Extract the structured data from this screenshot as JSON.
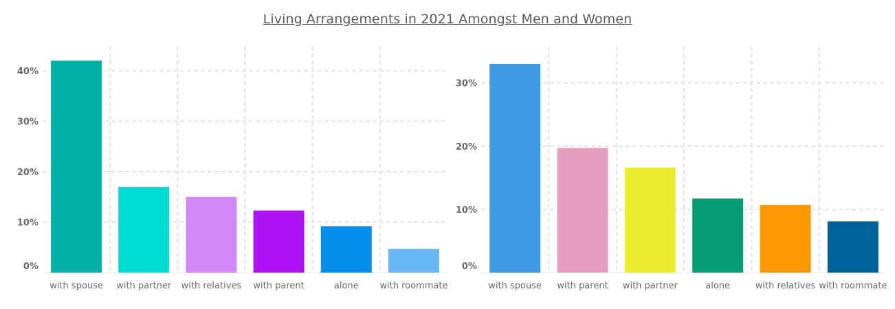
{
  "title": "Living Arrangements in 2021 Amongst Men and Women",
  "chart_data": [
    {
      "type": "bar",
      "categories": [
        "with spouse",
        "with partner",
        "with relatives",
        "with parent",
        "alone",
        "with roommate"
      ],
      "values": [
        42,
        17,
        15,
        12.3,
        9.2,
        4.7
      ],
      "colors": [
        "#00afa7",
        "#00dcd1",
        "#cf88f5",
        "#b111f5",
        "#048fec",
        "#6ab7f6"
      ],
      "ylim": [
        0,
        44.5
      ],
      "yticks": [
        0,
        10,
        20,
        30,
        40
      ],
      "ytick_labels": [
        "0%",
        "10%",
        "20%",
        "30%",
        "40%"
      ],
      "grid": true
    },
    {
      "type": "bar",
      "categories": [
        "with spouse",
        "with parent",
        "with partner",
        "alone",
        "with relatives",
        "with roommate"
      ],
      "values": [
        33,
        19.7,
        16.6,
        11.7,
        10.7,
        8.1
      ],
      "colors": [
        "#3d9ae2",
        "#e49ec0",
        "#ebec2e",
        "#039c73",
        "#fd9800",
        "#00629b"
      ],
      "ylim": [
        0,
        35.5
      ],
      "yticks": [
        0,
        10,
        20,
        30
      ],
      "ytick_labels": [
        "0%",
        "10%",
        "20%",
        "30%"
      ],
      "grid": true
    }
  ]
}
